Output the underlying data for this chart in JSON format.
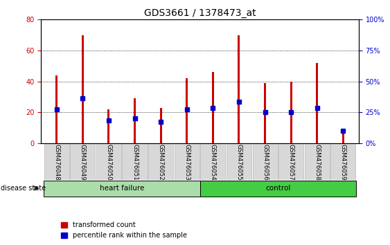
{
  "title": "GDS3661 / 1378473_at",
  "samples": [
    "GSM476048",
    "GSM476049",
    "GSM476050",
    "GSM476051",
    "GSM476052",
    "GSM476053",
    "GSM476054",
    "GSM476055",
    "GSM476056",
    "GSM476057",
    "GSM476058",
    "GSM476059"
  ],
  "red_values": [
    44,
    70,
    22,
    29,
    23,
    42,
    46,
    70,
    39,
    40,
    52,
    8
  ],
  "blue_values": [
    22,
    29,
    15,
    16,
    14,
    22,
    23,
    27,
    20,
    20,
    23,
    8
  ],
  "red_color": "#cc0000",
  "blue_color": "#0000cc",
  "left_ylim": [
    0,
    80
  ],
  "right_ylim": [
    0,
    100
  ],
  "left_yticks": [
    0,
    20,
    40,
    60,
    80
  ],
  "right_yticks": [
    0,
    25,
    50,
    75,
    100
  ],
  "right_yticklabels": [
    "0%",
    "25%",
    "50%",
    "75%",
    "100%"
  ],
  "heart_failure_indices": [
    0,
    1,
    2,
    3,
    4,
    5
  ],
  "control_indices": [
    6,
    7,
    8,
    9,
    10,
    11
  ],
  "heart_failure_label": "heart failure",
  "control_label": "control",
  "disease_state_label": "disease state",
  "legend_red": "transformed count",
  "legend_blue": "percentile rank within the sample",
  "group_color_heart_failure": "#aaddaa",
  "group_color_control": "#44cc44",
  "bar_width": 0.08,
  "blue_marker_size": 5,
  "title_fontsize": 10,
  "tick_fontsize": 7,
  "label_fontsize": 7.5,
  "grid_color": "black",
  "bar_zorder": 2
}
